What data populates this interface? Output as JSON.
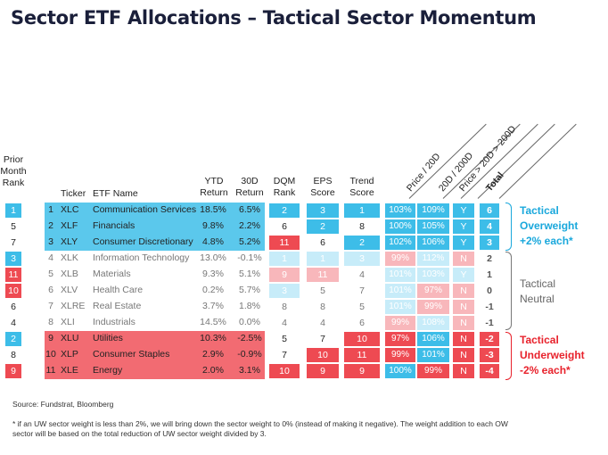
{
  "title": "Sector ETF Allocations – Tactical Sector Momentum",
  "headers": {
    "prior": [
      "Prior",
      "Month",
      "Rank"
    ],
    "ticker": "Ticker",
    "etf_name": "ETF Name",
    "ytd": [
      "YTD",
      "Return"
    ],
    "d30": [
      "30D",
      "Return"
    ],
    "dqm": [
      "DQM",
      "Rank"
    ],
    "eps": [
      "EPS",
      "Score"
    ],
    "trend": [
      "Trend",
      "Score"
    ],
    "price20": "Price / 20D",
    "d20_200": "20D / 200D",
    "cond": "Price > 20D > 200D",
    "total": "Total"
  },
  "colors": {
    "blue_band": "#5bc8ec",
    "red_band": "#f26b72",
    "blue_box": "#3dbde8",
    "red_box": "#ee4a52",
    "light_blue": "#c7ecf9",
    "light_red": "#f8b7bb"
  },
  "rows": [
    {
      "group": "ow",
      "prior": "1",
      "rank": "1",
      "ticker": "XLC",
      "name": "Communication Services",
      "ytd": "18.5%",
      "d30": "6.5%",
      "dqm": "2",
      "eps": "3",
      "trend": "1",
      "p20": "103%",
      "r20": "109%",
      "cond": "Y",
      "total": "6"
    },
    {
      "group": "ow",
      "prior": "5",
      "rank": "2",
      "ticker": "XLF",
      "name": "Financials",
      "ytd": "9.8%",
      "d30": "2.2%",
      "dqm": "6",
      "eps": "2",
      "trend": "8",
      "p20": "100%",
      "r20": "105%",
      "cond": "Y",
      "total": "4"
    },
    {
      "group": "ow",
      "prior": "7",
      "rank": "3",
      "ticker": "XLY",
      "name": "Consumer Discretionary",
      "ytd": "4.8%",
      "d30": "5.2%",
      "dqm": "11",
      "eps": "6",
      "trend": "2",
      "p20": "102%",
      "r20": "106%",
      "cond": "Y",
      "total": "3"
    },
    {
      "group": "n",
      "prior": "3",
      "rank": "4",
      "ticker": "XLK",
      "name": "Information Technology",
      "ytd": "13.0%",
      "d30": "-0.1%",
      "dqm": "1",
      "eps": "1",
      "trend": "3",
      "p20": "99%",
      "r20": "112%",
      "cond": "N",
      "total": "2"
    },
    {
      "group": "n",
      "prior": "11",
      "rank": "5",
      "ticker": "XLB",
      "name": "Materials",
      "ytd": "9.3%",
      "d30": "5.1%",
      "dqm": "9",
      "eps": "11",
      "trend": "4",
      "p20": "101%",
      "r20": "103%",
      "cond": "Y",
      "total": "1"
    },
    {
      "group": "n",
      "prior": "10",
      "rank": "6",
      "ticker": "XLV",
      "name": "Health Care",
      "ytd": "0.2%",
      "d30": "5.7%",
      "dqm": "3",
      "eps": "5",
      "trend": "7",
      "p20": "101%",
      "r20": "97%",
      "cond": "N",
      "total": "0"
    },
    {
      "group": "n",
      "prior": "6",
      "rank": "7",
      "ticker": "XLRE",
      "name": "Real Estate",
      "ytd": "3.7%",
      "d30": "1.8%",
      "dqm": "8",
      "eps": "8",
      "trend": "5",
      "p20": "101%",
      "r20": "99%",
      "cond": "N",
      "total": "-1"
    },
    {
      "group": "n",
      "prior": "4",
      "rank": "8",
      "ticker": "XLI",
      "name": "Industrials",
      "ytd": "14.5%",
      "d30": "0.0%",
      "dqm": "4",
      "eps": "4",
      "trend": "6",
      "p20": "99%",
      "r20": "108%",
      "cond": "N",
      "total": "-1"
    },
    {
      "group": "uw",
      "prior": "2",
      "rank": "9",
      "ticker": "XLU",
      "name": "Utilities",
      "ytd": "10.3%",
      "d30": "-2.5%",
      "dqm": "5",
      "eps": "7",
      "trend": "10",
      "p20": "97%",
      "r20": "106%",
      "cond": "N",
      "total": "-2"
    },
    {
      "group": "uw",
      "prior": "8",
      "rank": "10",
      "ticker": "XLP",
      "name": "Consumer Staples",
      "ytd": "2.9%",
      "d30": "-0.9%",
      "dqm": "7",
      "eps": "10",
      "trend": "11",
      "p20": "99%",
      "r20": "101%",
      "cond": "N",
      "total": "-3"
    },
    {
      "group": "uw",
      "prior": "9",
      "rank": "11",
      "ticker": "XLE",
      "name": "Energy",
      "ytd": "2.0%",
      "d30": "3.1%",
      "dqm": "10",
      "eps": "9",
      "trend": "9",
      "p20": "100%",
      "r20": "99%",
      "cond": "N",
      "total": "-4"
    }
  ],
  "brackets": {
    "ow": [
      "Tactical",
      "Overweight",
      "+2% each*"
    ],
    "n": [
      "Tactical",
      "Neutral"
    ],
    "uw": [
      "Tactical",
      "Underweight",
      "-2% each*"
    ]
  },
  "source": "Source: Fundstrat, Bloomberg",
  "footnote": [
    "* if an UW sector weight is less than 2%, we will bring down the sector weight to 0% (instead of making it negative). The weight addition to each OW",
    "sector will be based on the total reduction of UW sector weight divided by 3."
  ]
}
